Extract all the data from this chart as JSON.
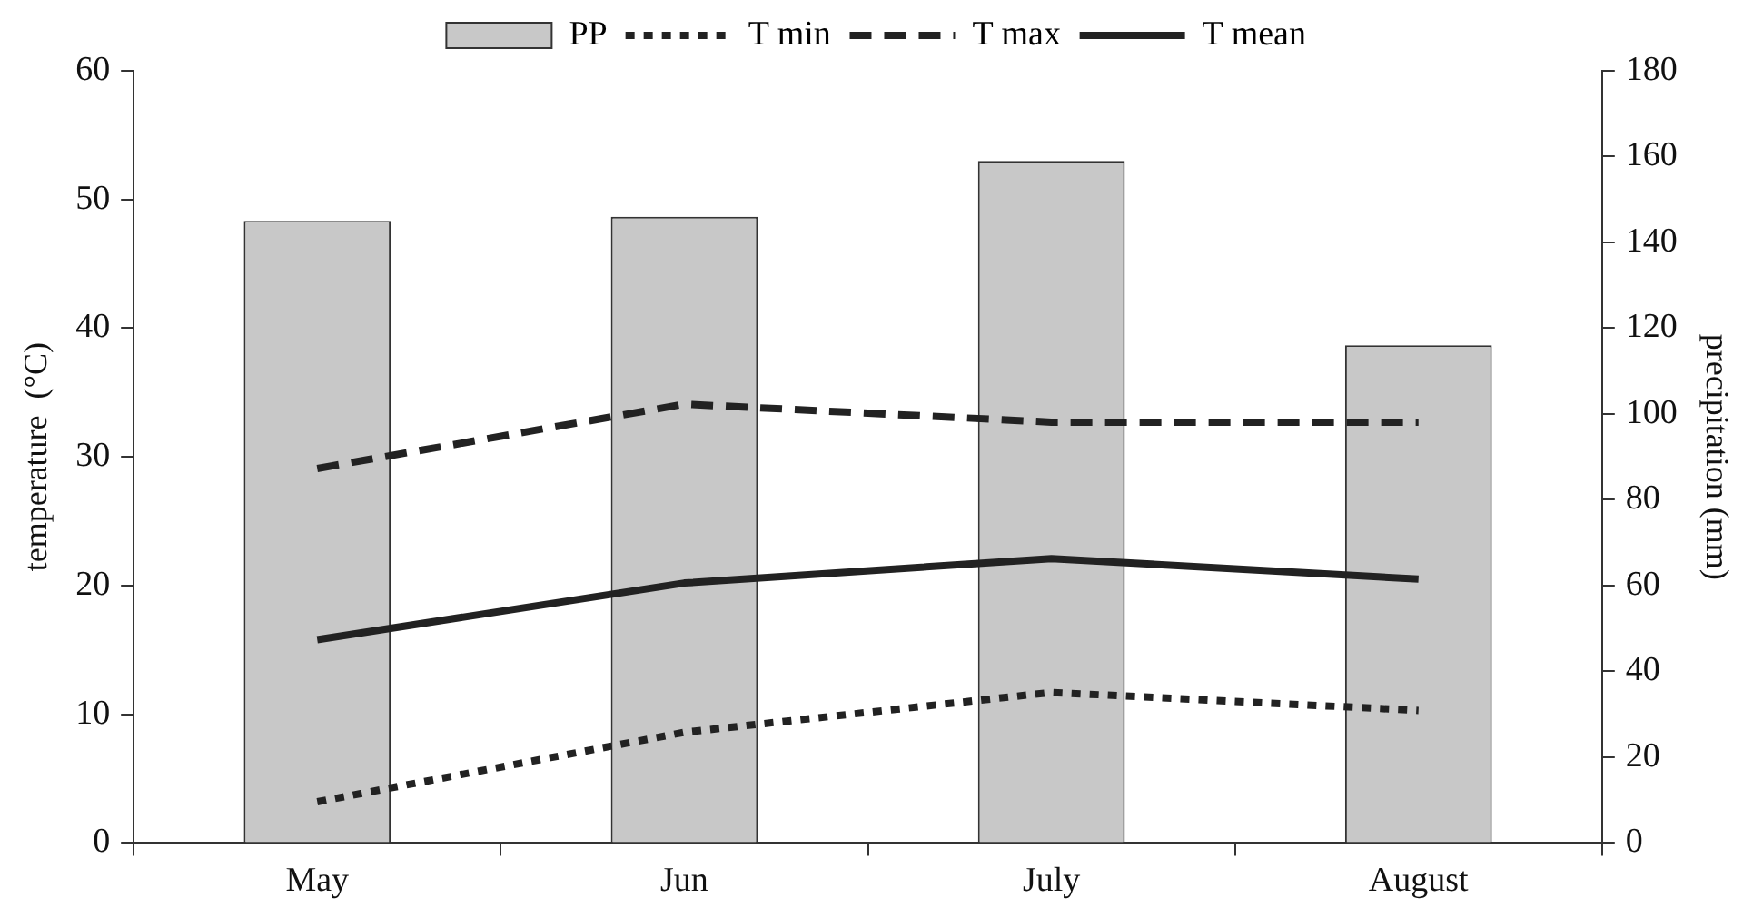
{
  "chart_data": {
    "type": "bar",
    "categories": [
      "May",
      "Jun",
      "July",
      "August"
    ],
    "ylabel": "temperature  (°C)",
    "y2label": "precipitation (mm)",
    "ylim": [
      0,
      60
    ],
    "yticks": [
      0,
      10,
      20,
      30,
      40,
      50,
      60
    ],
    "y2lim": [
      0,
      180
    ],
    "y2ticks": [
      0,
      20,
      40,
      60,
      80,
      100,
      120,
      140,
      160,
      180
    ],
    "legend": "top",
    "grid": false,
    "marker": "none",
    "series": [
      {
        "name": "PP",
        "type": "bar",
        "axis": "y2",
        "color": "#c8c8c8",
        "values": [
          145,
          146,
          159,
          116
        ]
      },
      {
        "name": "T min",
        "type": "line",
        "line_style": "dotted",
        "color": "#222222",
        "values": [
          3.2,
          8.6,
          11.7,
          10.3
        ]
      },
      {
        "name": "T max",
        "type": "line",
        "line_style": "dashed",
        "color": "#222222",
        "values": [
          29.1,
          34.1,
          32.7,
          32.7
        ]
      },
      {
        "name": "T mean",
        "type": "line",
        "line_style": "solid",
        "color": "#222222",
        "values": [
          15.8,
          20.2,
          22.1,
          20.5
        ]
      }
    ]
  }
}
